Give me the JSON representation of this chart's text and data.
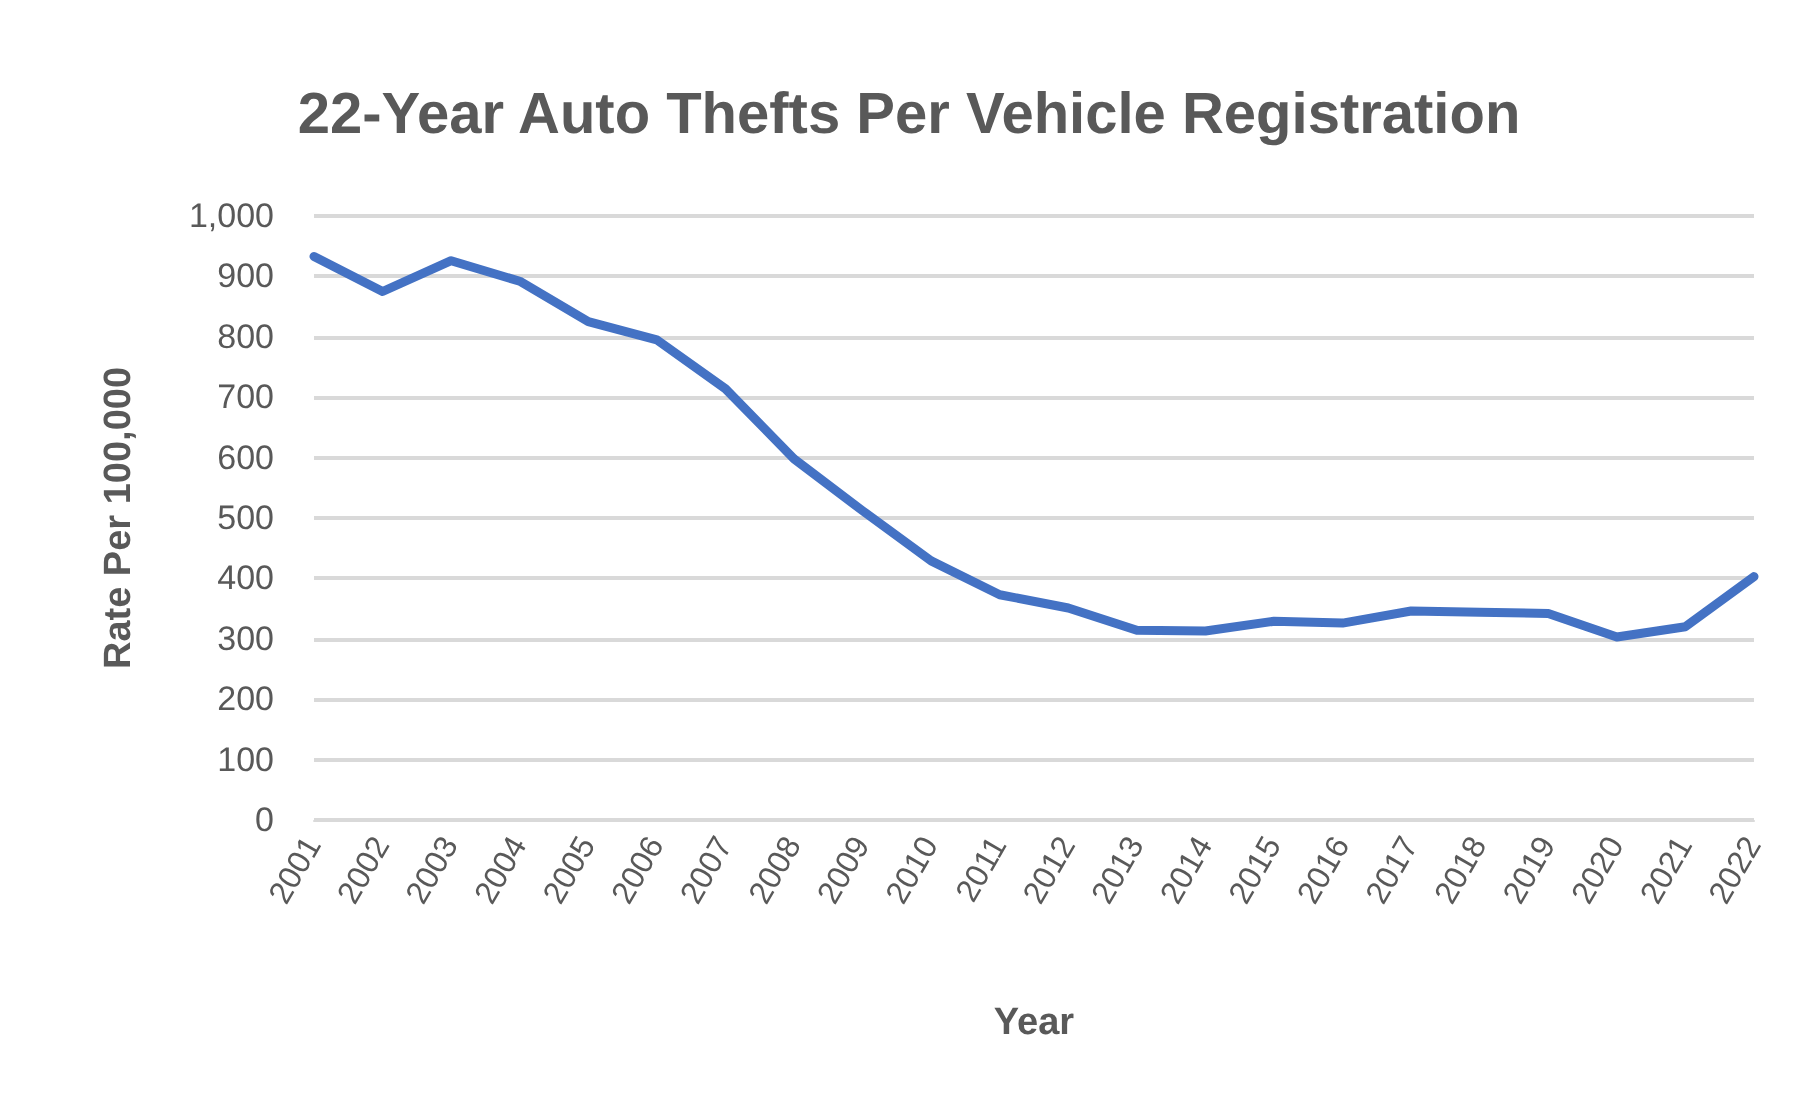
{
  "chart_data": {
    "type": "line",
    "title": "22-Year Auto Thefts Per Vehicle Registration",
    "xlabel": "Year",
    "ylabel": "Rate Per 100,000",
    "categories": [
      "2001",
      "2002",
      "2003",
      "2004",
      "2005",
      "2006",
      "2007",
      "2008",
      "2009",
      "2010",
      "2011",
      "2012",
      "2013",
      "2014",
      "2015",
      "2016",
      "2017",
      "2018",
      "2019",
      "2020",
      "2021",
      "2022"
    ],
    "series": [
      {
        "color": "#4472c4",
        "values": [
          933,
          875,
          926,
          892,
          825,
          795,
          714,
          598,
          512,
          429,
          373,
          351,
          314,
          313,
          329,
          326,
          346,
          344,
          342,
          303,
          320,
          403
        ]
      }
    ],
    "ylim": [
      0,
      1000
    ],
    "yticks": [
      0,
      {
        "value": 100,
        "label": "100"
      },
      {
        "value": 200,
        "label": "200"
      },
      {
        "value": 300,
        "label": "300"
      },
      {
        "value": 400,
        "label": "400"
      },
      {
        "value": 500,
        "label": "500"
      },
      {
        "value": 600,
        "label": "600"
      },
      {
        "value": 700,
        "label": "700"
      },
      {
        "value": 800,
        "label": "800"
      },
      {
        "value": 900,
        "label": "900"
      },
      {
        "value": 1000,
        "label": "1,000"
      }
    ],
    "grid": "y",
    "marker": "none",
    "line_style": "solid"
  }
}
